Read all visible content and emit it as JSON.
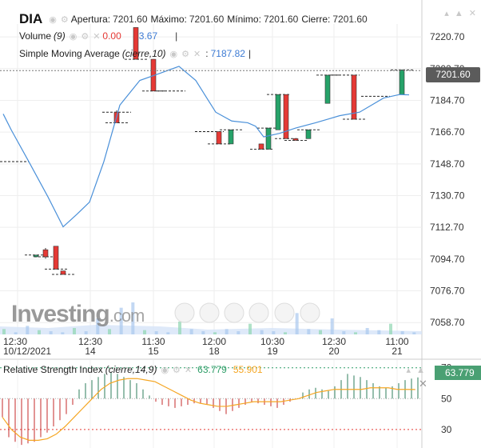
{
  "header": {
    "symbol": "DIA",
    "open_label": "Apertura:",
    "open_value": "7201.60",
    "high_label": "Máximo:",
    "high_value": "7201.60",
    "low_label": "Mínimo:",
    "low_value": "7201.60",
    "close_label": "Cierre:",
    "close_value": "7201.60",
    "volume_label": "Volume",
    "volume_param": "(9)",
    "volume_val1": "0.00",
    "volume_val2": "3.67",
    "sma_label": "Simple Moving Average",
    "sma_param": "(cierre,10)",
    "sma_value": "7187.82",
    "rsi_label": "Relative Strength Index",
    "rsi_param": "(cierre,14,9)",
    "rsi_value": "63.779",
    "rsi_signal": "55.901",
    "current_price": "7201.60",
    "rsi_current": "63.779",
    "watermark": "Investing",
    "watermark_suffix": ".com"
  },
  "colors": {
    "up": "#26a269",
    "down": "#e53935",
    "sma": "#4a90d9",
    "rsi_line": "#f5a623",
    "grid": "#eeeeee",
    "volume": "#bcd3f0"
  },
  "chart_data": {
    "type": "candlestick",
    "price_axis": {
      "ticks": [
        7220.7,
        7202.7,
        7184.7,
        7166.7,
        7148.7,
        7130.7,
        7112.7,
        7094.7,
        7076.7,
        7058.7
      ],
      "ylim": [
        7052,
        7228
      ]
    },
    "time_axis": [
      {
        "label": "12:30",
        "sub": "10/12/2021"
      },
      {
        "label": "12:30",
        "sub": "14"
      },
      {
        "label": "11:30",
        "sub": "15"
      },
      {
        "label": "12:00",
        "sub": "18"
      },
      {
        "label": "10:30",
        "sub": "19"
      },
      {
        "label": "12:30",
        "sub": "20"
      },
      {
        "label": "11:00",
        "sub": "21"
      }
    ],
    "candles": [
      {
        "o": 7150,
        "h": 7150,
        "l": 7150,
        "c": 7150
      },
      {
        "o": 7096,
        "h": 7097,
        "l": 7096,
        "c": 7097
      },
      {
        "o": 7100,
        "h": 7101,
        "l": 7095,
        "c": 7096
      },
      {
        "o": 7102,
        "h": 7102,
        "l": 7089,
        "c": 7089
      },
      {
        "o": 7088,
        "h": 7088,
        "l": 7086,
        "c": 7086
      },
      {
        "o": 7178,
        "h": 7178,
        "l": 7178,
        "c": 7178
      },
      {
        "o": 7178,
        "h": 7179,
        "l": 7172,
        "c": 7172
      },
      {
        "o": 7226,
        "h": 7226,
        "l": 7208,
        "c": 7208
      },
      {
        "o": 7208,
        "h": 7208,
        "l": 7190,
        "c": 7190
      },
      {
        "o": 7190,
        "h": 7190,
        "l": 7190,
        "c": 7190
      },
      {
        "o": 7167,
        "h": 7167,
        "l": 7167,
        "c": 7167
      },
      {
        "o": 7167,
        "h": 7167,
        "l": 7160,
        "c": 7160
      },
      {
        "o": 7160,
        "h": 7168,
        "l": 7160,
        "c": 7168
      },
      {
        "o": 7160,
        "h": 7160,
        "l": 7157,
        "c": 7157
      },
      {
        "o": 7157,
        "h": 7169,
        "l": 7157,
        "c": 7169
      },
      {
        "o": 7168,
        "h": 7188,
        "l": 7168,
        "c": 7188
      },
      {
        "o": 7188,
        "h": 7188,
        "l": 7163,
        "c": 7163
      },
      {
        "o": 7163,
        "h": 7163,
        "l": 7162,
        "c": 7162
      },
      {
        "o": 7163,
        "h": 7168,
        "l": 7163,
        "c": 7168
      },
      {
        "o": 7183,
        "h": 7199,
        "l": 7183,
        "c": 7199
      },
      {
        "o": 7199,
        "h": 7199,
        "l": 7199,
        "c": 7199
      },
      {
        "o": 7199,
        "h": 7199,
        "l": 7174,
        "c": 7174
      },
      {
        "o": 7187,
        "h": 7187,
        "l": 7187,
        "c": 7187
      },
      {
        "o": 7188,
        "h": 7202,
        "l": 7188,
        "c": 7202
      }
    ],
    "sma": [
      7177,
      7168,
      7150,
      7130,
      7113,
      7120,
      7127,
      7150,
      7182,
      7196,
      7200,
      7204,
      7196,
      7178,
      7173,
      7172,
      7170,
      7164,
      7166,
      7169,
      7172,
      7174,
      7176,
      7178,
      7186,
      7188,
      7187.82
    ],
    "volume": [
      0.5,
      0.2,
      0.8,
      0.4,
      0.3,
      0.2,
      0.6,
      0.3,
      1.5,
      0.5,
      2.5,
      3.0,
      0.4,
      0.3,
      0.2,
      1.2,
      0.5,
      0.3,
      0.2,
      0.5,
      0.3,
      1.0,
      0.4,
      0.3,
      0.2,
      2.0,
      0.5,
      0.4,
      1.5,
      0.3,
      0.2,
      0.6,
      0.4,
      1.0,
      0.3,
      0.2
    ],
    "rsi_axis": {
      "ticks": [
        70,
        50,
        30
      ],
      "ylim": [
        18,
        74
      ]
    },
    "rsi_bars": [
      38,
      25,
      22,
      20,
      21,
      22,
      25,
      28,
      32,
      36,
      40,
      46,
      56,
      60,
      62,
      64,
      66,
      67,
      66,
      64,
      62,
      60,
      56,
      52,
      48,
      46,
      45,
      44,
      45,
      46,
      47,
      47,
      46,
      44,
      42,
      40,
      42,
      44,
      46,
      48,
      47,
      46,
      45,
      44,
      46,
      48,
      50,
      54,
      56,
      57,
      56,
      55,
      58,
      62,
      66,
      65,
      64,
      62,
      60,
      58,
      57,
      58,
      60,
      62,
      63,
      63.779
    ],
    "rsi_signal_line": [
      38,
      30,
      25,
      23,
      23,
      24,
      27,
      32,
      38,
      44,
      50,
      56,
      60,
      62,
      63,
      63,
      62,
      61,
      58,
      55,
      52,
      49,
      47,
      46,
      45,
      45,
      46,
      47,
      48,
      48,
      48,
      48,
      49,
      50,
      52,
      54,
      55,
      56,
      56,
      56,
      56,
      57,
      57,
      57,
      56,
      56,
      55.901
    ]
  }
}
